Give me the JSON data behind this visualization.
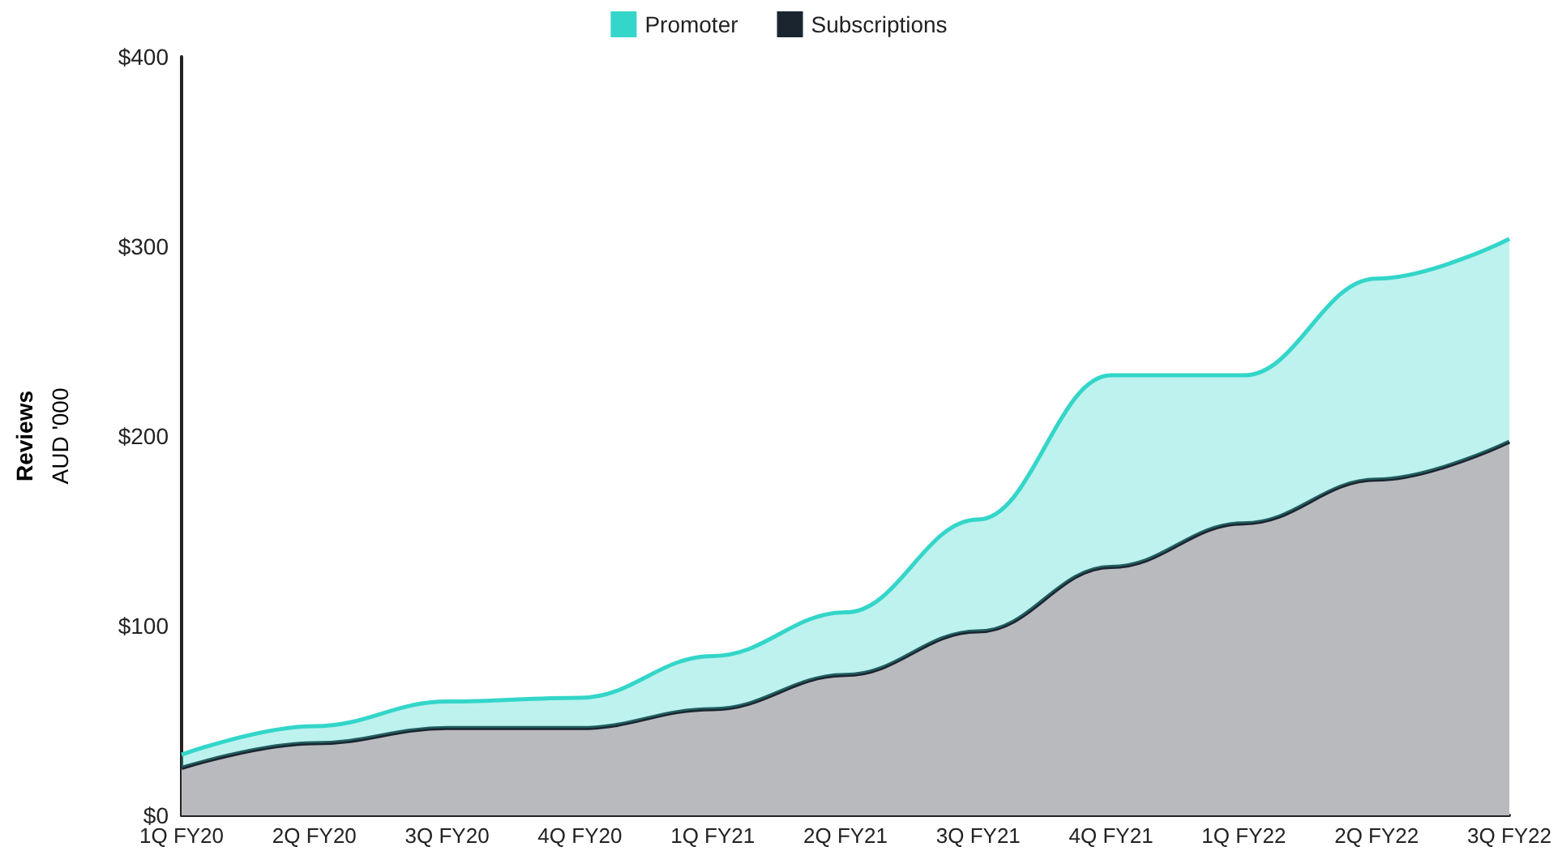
{
  "chart_data": {
    "type": "area",
    "ylabel": "Reviews\nAUD '000",
    "stacked": true,
    "categories": [
      "1Q FY20",
      "2Q FY20",
      "3Q FY20",
      "4Q FY20",
      "1Q FY21",
      "2Q FY21",
      "3Q FY21",
      "4Q FY21",
      "1Q FY22",
      "2Q FY22",
      "3Q FY22"
    ],
    "series": [
      {
        "name": "Subscriptions",
        "color": "#1a2530",
        "values": [
          25,
          38,
          46,
          46,
          56,
          74,
          97,
          131,
          154,
          177,
          197
        ]
      },
      {
        "name": "Promoter",
        "color": "#33d6c9",
        "values": [
          7,
          9,
          14,
          16,
          28,
          33,
          59,
          101,
          78,
          106,
          107
        ]
      }
    ],
    "ylim": [
      0,
      400
    ],
    "yticks": [
      {
        "value": 0,
        "label": "$0"
      },
      {
        "value": 100,
        "label": "$100"
      },
      {
        "value": 200,
        "label": "$200"
      },
      {
        "value": 300,
        "label": "$300"
      },
      {
        "value": 400,
        "label": "$400"
      }
    ],
    "grid": false,
    "legend": "top",
    "marker": "none",
    "line_style": "solid"
  }
}
